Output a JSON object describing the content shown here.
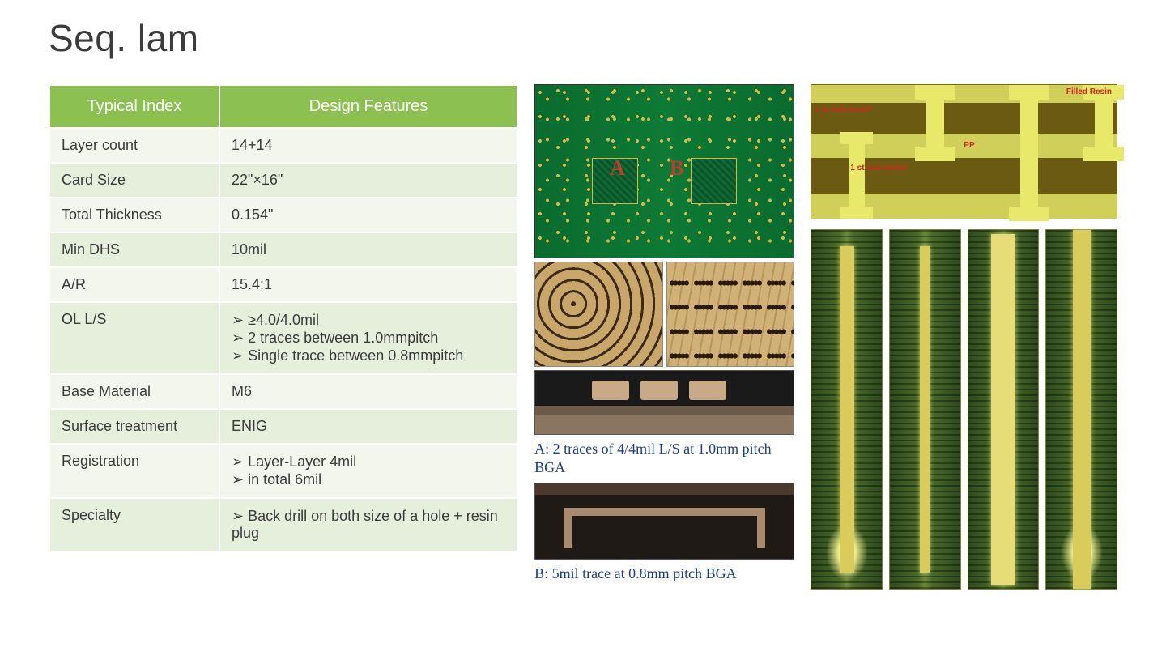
{
  "title": "Seq. lam",
  "table": {
    "header_bg": "#8cc152",
    "header_fg": "#ffffff",
    "row_bg_odd": "#f2f6ec",
    "row_bg_even": "#e6eedc",
    "columns": [
      "Typical Index",
      "Design Features"
    ],
    "rows": [
      {
        "label": "Layer count",
        "value": "14+14"
      },
      {
        "label": "Card Size",
        "value": "22\"×16\""
      },
      {
        "label": "Total Thickness",
        "value": "0.154\""
      },
      {
        "label": "Min DHS",
        "value": "10mil"
      },
      {
        "label": "A/R",
        "value": "15.4:1"
      },
      {
        "label": "OL L/S",
        "bullets": [
          "≥4.0/4.0mil",
          "2 traces between 1.0mmpitch",
          "Single trace between 0.8mmpitch"
        ]
      },
      {
        "label": "Base Material",
        "value": "M6"
      },
      {
        "label": "Surface treatment",
        "value": "ENIG"
      },
      {
        "label": "Registration",
        "bullets": [
          "Layer-Layer 4mil",
          "in total 6mil"
        ]
      },
      {
        "label": "Specialty",
        "bullets": [
          "Back drill on both size of a hole + resin plug"
        ]
      }
    ]
  },
  "captions": {
    "a": "A: 2 traces of 4/4mil L/S at 1.0mm pitch BGA",
    "b": "B: 5mil trace at 0.8mm pitch BGA"
  },
  "stackup_labels": {
    "top_left": "1 st\nSub board",
    "bottom_left": "1 st\nSub board",
    "top_right": "Filled\nResin",
    "middle": "PP"
  },
  "pcb_markers": {
    "a": "A",
    "b": "B"
  },
  "caption_color": "#1a3e8c",
  "stackup_colors": {
    "dark": "#6b5b12",
    "light": "#cfcf5a",
    "via": "#e8e86a",
    "label": "#d2261f"
  },
  "pcb_colors": {
    "base": "#0a6b2e",
    "pad": "#d6b84a",
    "marker": "#c43a2e"
  }
}
